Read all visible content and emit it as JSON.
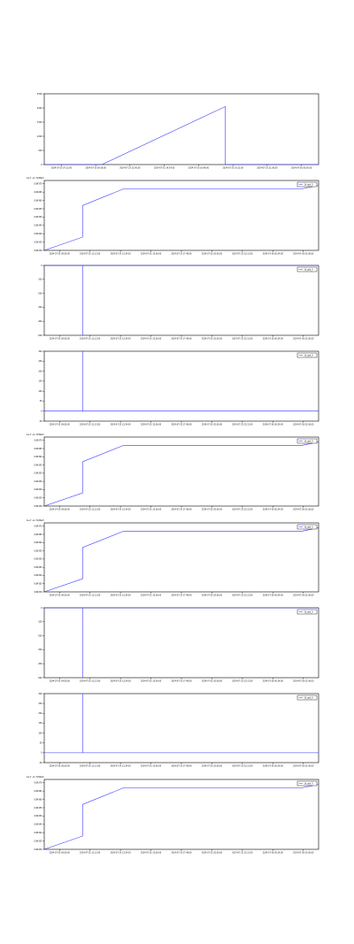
{
  "chart_data": [
    {
      "type": "line",
      "x_ticks": [
        "2024-07-25 07:12:00",
        "2024-07-25 09:36:00",
        "2024-07-25 12:00:00",
        "2024-07-25 14:24:00",
        "2024-07-25 16:48:00",
        "2024-07-25 19:12:00",
        "2024-07-25 21:36:00",
        "2024-07-26 00:00:00"
      ],
      "y_ticks": [
        "0",
        "500",
        "1000",
        "1500",
        "2000",
        "2500"
      ],
      "ylim": [
        0,
        2500
      ],
      "offset_label": "",
      "legend": "",
      "series": [
        {
          "x": [
            0.0,
            0.13,
            0.21,
            0.66,
            0.66,
            1.0
          ],
          "y": [
            0,
            0,
            0,
            2050,
            0,
            0
          ]
        }
      ]
    },
    {
      "type": "line",
      "x_ticks": [
        "2024-07-25 09:00:00",
        "2024-07-25 11:12:00",
        "2024-07-25 13:24:00",
        "2024-07-25 15:36:00",
        "2024-07-25 17:48:00",
        "2024-07-25 20:00:00",
        "2024-07-25 22:12:00",
        "2024-07-26 00:24:00",
        "2024-07-26 02:36:00"
      ],
      "y_ticks": [
        "0.84330",
        "0.84335",
        "0.84340",
        "0.84345",
        "0.84350",
        "0.84355",
        "0.84360",
        "0.84365",
        "0.84370"
      ],
      "ylim": [
        0.8433,
        0.84372
      ],
      "offset_label": "1e-7 +1.7226e3",
      "legend": "1d_spk_0",
      "series": [
        {
          "x": [
            0.0,
            0.14,
            0.14,
            0.29,
            0.94,
            1.0
          ],
          "y": [
            0.8433,
            0.84338,
            0.84357,
            0.84367,
            0.84367,
            0.84369
          ]
        }
      ]
    },
    {
      "type": "line",
      "x_ticks": [
        "2024-07-25 09:00:00",
        "2024-07-25 11:12:00",
        "2024-07-25 13:24:00",
        "2024-07-25 15:36:00",
        "2024-07-25 17:48:00",
        "2024-07-25 20:00:00",
        "2024-07-25 22:12:00",
        "2024-07-26 00:24:00",
        "2024-07-26 02:36:00"
      ],
      "y_ticks": [
        "0",
        "-100",
        "-200",
        "-300",
        "-400",
        "-500"
      ],
      "ylim": [
        -500,
        0
      ],
      "offset_label": "",
      "legend": "1d_spk_0",
      "series": [
        {
          "x": [
            0.0,
            0.14,
            0.14,
            0.14,
            1.0
          ],
          "y": [
            0,
            0,
            -500,
            0,
            0
          ]
        }
      ]
    },
    {
      "type": "line",
      "x_ticks": [
        "2024-07-25 09:00:00",
        "2024-07-25 11:12:00",
        "2024-07-25 13:24:00",
        "2024-07-25 15:36:00",
        "2024-07-25 17:48:00",
        "2024-07-25 20:00:00",
        "2024-07-25 22:12:00",
        "2024-07-26 00:24:00",
        "2024-07-26 02:36:00"
      ],
      "y_ticks": [
        "-50",
        "0",
        "50",
        "100",
        "150",
        "200",
        "250",
        "300"
      ],
      "ylim": [
        -50,
        300
      ],
      "offset_label": "",
      "legend": "1d_spk_0",
      "series": [
        {
          "x": [
            0.0,
            0.14,
            0.14,
            0.14,
            1.0
          ],
          "y": [
            0,
            0,
            300,
            0,
            0
          ]
        }
      ]
    },
    {
      "type": "line",
      "x_ticks": [
        "2024-07-25 09:00:00",
        "2024-07-25 11:12:00",
        "2024-07-25 13:24:00",
        "2024-07-25 15:36:00",
        "2024-07-25 17:48:00",
        "2024-07-25 20:00:00",
        "2024-07-25 22:12:00",
        "2024-07-26 00:24:00",
        "2024-07-26 02:36:00"
      ],
      "y_ticks": [
        "0.84330",
        "0.84335",
        "0.84340",
        "0.84345",
        "0.84350",
        "0.84355",
        "0.84360",
        "0.84365",
        "0.84370"
      ],
      "ylim": [
        0.8433,
        0.84372
      ],
      "offset_label": "1e-7 +1.7226e3",
      "legend": "1d_spk_0",
      "series": [
        {
          "x": [
            0.0,
            0.14,
            0.14,
            0.29,
            0.94,
            1.0
          ],
          "y": [
            0.8433,
            0.84338,
            0.84357,
            0.84367,
            0.84367,
            0.84369
          ]
        }
      ]
    },
    {
      "type": "line",
      "x_ticks": [
        "2024-07-25 09:00:00",
        "2024-07-25 11:12:00",
        "2024-07-25 13:24:00",
        "2024-07-25 15:36:00",
        "2024-07-25 17:48:00",
        "2024-07-25 20:00:00",
        "2024-07-25 22:12:00",
        "2024-07-26 00:24:00",
        "2024-07-26 02:36:00"
      ],
      "y_ticks": [
        "0.84330",
        "0.84335",
        "0.84340",
        "0.84345",
        "0.84350",
        "0.84355",
        "0.84360",
        "0.84365",
        "0.84370"
      ],
      "ylim": [
        0.8433,
        0.84372
      ],
      "offset_label": "1e-7 +1.7226e3",
      "legend": "1d_spk_0",
      "series": [
        {
          "x": [
            0.0,
            0.14,
            0.14,
            0.29,
            0.94,
            1.0
          ],
          "y": [
            0.8433,
            0.84338,
            0.84357,
            0.84367,
            0.84367,
            0.84369
          ]
        }
      ]
    },
    {
      "type": "line",
      "x_ticks": [
        "2024-07-25 09:00:00",
        "2024-07-25 11:12:00",
        "2024-07-25 13:24:00",
        "2024-07-25 15:36:00",
        "2024-07-25 17:48:00",
        "2024-07-25 20:00:00",
        "2024-07-25 22:12:00",
        "2024-07-26 00:24:00",
        "2024-07-26 02:36:00"
      ],
      "y_ticks": [
        "0",
        "-100",
        "-200",
        "-300",
        "-400",
        "-500"
      ],
      "ylim": [
        -500,
        0
      ],
      "offset_label": "",
      "legend": "1d_spk_0",
      "series": [
        {
          "x": [
            0.0,
            0.14,
            0.14,
            0.14,
            1.0
          ],
          "y": [
            0,
            0,
            -500,
            0,
            0
          ]
        }
      ]
    },
    {
      "type": "line",
      "x_ticks": [
        "2024-07-25 09:00:00",
        "2024-07-25 11:12:00",
        "2024-07-25 13:24:00",
        "2024-07-25 15:36:00",
        "2024-07-25 17:48:00",
        "2024-07-25 20:00:00",
        "2024-07-25 22:12:00",
        "2024-07-26 00:24:00",
        "2024-07-26 02:36:00"
      ],
      "y_ticks": [
        "-50",
        "0",
        "50",
        "100",
        "150",
        "200",
        "250",
        "300"
      ],
      "ylim": [
        -50,
        300
      ],
      "offset_label": "",
      "legend": "1d_spk_0",
      "series": [
        {
          "x": [
            0.0,
            0.14,
            0.14,
            0.14,
            1.0
          ],
          "y": [
            0,
            0,
            300,
            0,
            0
          ]
        }
      ]
    },
    {
      "type": "line",
      "x_ticks": [
        "2024-07-25 09:00:00",
        "2024-07-25 11:12:00",
        "2024-07-25 13:24:00",
        "2024-07-25 15:36:00",
        "2024-07-25 17:48:00",
        "2024-07-25 20:00:00",
        "2024-07-25 22:12:00",
        "2024-07-26 00:24:00",
        "2024-07-26 02:36:00"
      ],
      "y_ticks": [
        "0.84330",
        "0.84335",
        "0.84340",
        "0.84345",
        "0.84350",
        "0.84355",
        "0.84360",
        "0.84365",
        "0.84370"
      ],
      "ylim": [
        0.8433,
        0.84372
      ],
      "offset_label": "1e-7 +1.7226e3",
      "legend": "1d_spk_0",
      "series": [
        {
          "x": [
            0.0,
            0.14,
            0.14,
            0.29,
            0.94,
            1.0
          ],
          "y": [
            0.8433,
            0.84338,
            0.84357,
            0.84367,
            0.84367,
            0.84369
          ]
        }
      ]
    }
  ]
}
